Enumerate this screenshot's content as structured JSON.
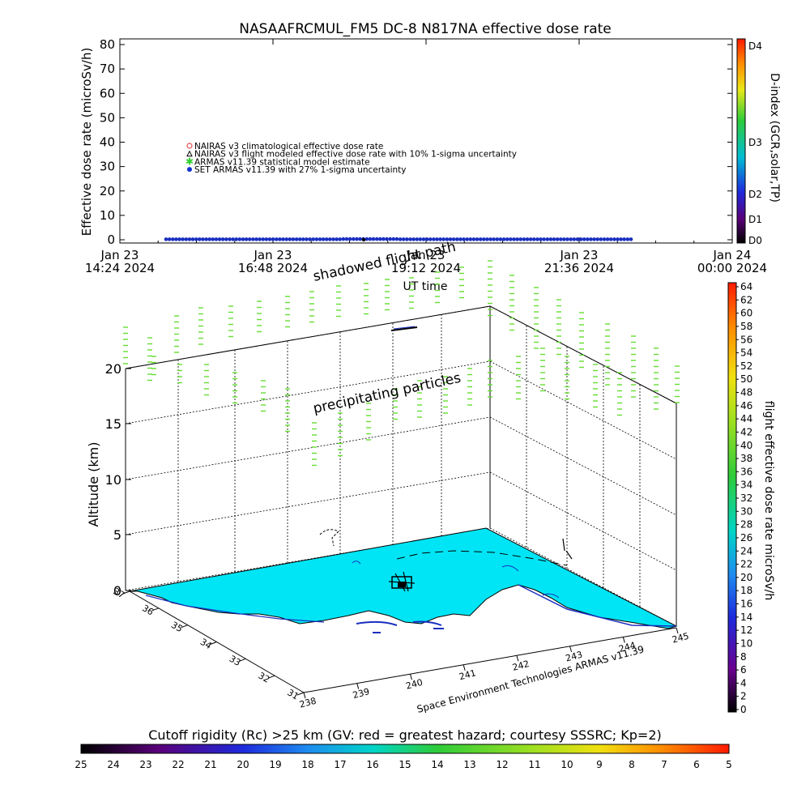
{
  "top_chart": {
    "title": "NASAAFRCMUL_FM5 DC-8   N817NA effective dose rate",
    "ylabel": "Effective dose rate (microSv/h)",
    "xlabel": "UT time",
    "right_label": "D-index (GCR,solar,TP)",
    "yticks": [
      "0",
      "10",
      "20",
      "30",
      "40",
      "50",
      "60",
      "70",
      "80"
    ],
    "xticks": [
      {
        "line1": "Jan 23",
        "line2": "14:24 2024"
      },
      {
        "line1": "Jan 23",
        "line2": "16:48 2024"
      },
      {
        "line1": "Jan 23",
        "line2": "19:12 2024"
      },
      {
        "line1": "Jan 23",
        "line2": "21:36 2024"
      },
      {
        "line1": "Jan 24",
        "line2": "00:00 2024"
      }
    ],
    "dindex_labels": [
      "D4",
      "D3",
      "D2",
      "D1",
      "D0"
    ],
    "legend": [
      {
        "label": "NAIRAS v3 climatological effective dose rate",
        "color": "#e05050",
        "marker": "circle"
      },
      {
        "label": "NAIRAS v3 flight modeled effective dose rate with 10% 1-sigma uncertainty",
        "color": "#000000",
        "marker": "triangle"
      },
      {
        "label": "ARMAS v11.39 statistical model estimate",
        "color": "#30d030",
        "marker": "star"
      },
      {
        "label": "SET ARMAS v11.39 with 27% 1-sigma uncertainty",
        "color": "#1030d0",
        "marker": "dot"
      }
    ]
  },
  "chart_data": [
    {
      "type": "scatter",
      "title": "NASAAFRCMUL_FM5 DC-8   N817NA effective dose rate",
      "xlabel": "UT time",
      "ylabel": "Effective dose rate (microSv/h)",
      "ylim": [
        0,
        80
      ],
      "xlim": [
        "2024-01-23 14:24",
        "2024-01-24 00:00"
      ],
      "series": [
        {
          "name": "SET ARMAS v11.39 with 27% 1-sigma uncertainty",
          "x_start": "2024-01-23 15:12",
          "x_end": "2024-01-23 22:48",
          "values_approx": [
            0.2,
            0.2,
            0.2,
            0.3,
            0.2,
            0.2,
            0.2,
            0.2
          ]
        }
      ],
      "legend_position": "left-middle"
    },
    {
      "type": "heatmap",
      "description_labels": [
        "shadowed flight path",
        "precipitating particles"
      ],
      "zlabel": "Altitude (km)",
      "zticks": [
        "0",
        "5",
        "10",
        "15",
        "20"
      ],
      "lat_ticks": [
        "31",
        "32",
        "33",
        "34",
        "35",
        "36",
        "37"
      ],
      "lon_ticks": [
        "238",
        "239",
        "240",
        "241",
        "242",
        "243",
        "244",
        "245"
      ]
    }
  ],
  "map3d": {
    "label_shadowed": "shadowed flight path",
    "label_precip": "precipitating particles",
    "zlabel": "Altitude (km)",
    "zticks": [
      "0",
      "5",
      "10",
      "15",
      "20"
    ],
    "lat_ticks": [
      "31",
      "32",
      "33",
      "34",
      "35",
      "36",
      "37"
    ],
    "lon_ticks": [
      "238",
      "239",
      "240",
      "241",
      "242",
      "243",
      "244",
      "245"
    ],
    "credit": "Space Environment Technologies ARMAS v11.39"
  },
  "dose_colorbar": {
    "label": "flight effective dose rate microSv/h",
    "ticks": [
      "64",
      "62",
      "60",
      "58",
      "56",
      "54",
      "52",
      "50",
      "48",
      "46",
      "44",
      "42",
      "40",
      "38",
      "36",
      "34",
      "32",
      "30",
      "28",
      "26",
      "24",
      "22",
      "20",
      "18",
      "16",
      "14",
      "12",
      "10",
      "8",
      "6",
      "4",
      "2",
      "0"
    ]
  },
  "cutoff_bar": {
    "title": "Cutoff rigidity (Rc) >25 km (GV: red = greatest hazard; courtesy SSSRC; Kp=2)",
    "ticks": [
      "25",
      "24",
      "23",
      "22",
      "21",
      "20",
      "19",
      "18",
      "17",
      "16",
      "15",
      "14",
      "13",
      "12",
      "11",
      "10",
      "9",
      "8",
      "7",
      "6",
      "5"
    ]
  },
  "colors": {
    "ocean": "#00e5f5",
    "precip": "#66dd33",
    "track": "#1a2fc0"
  }
}
